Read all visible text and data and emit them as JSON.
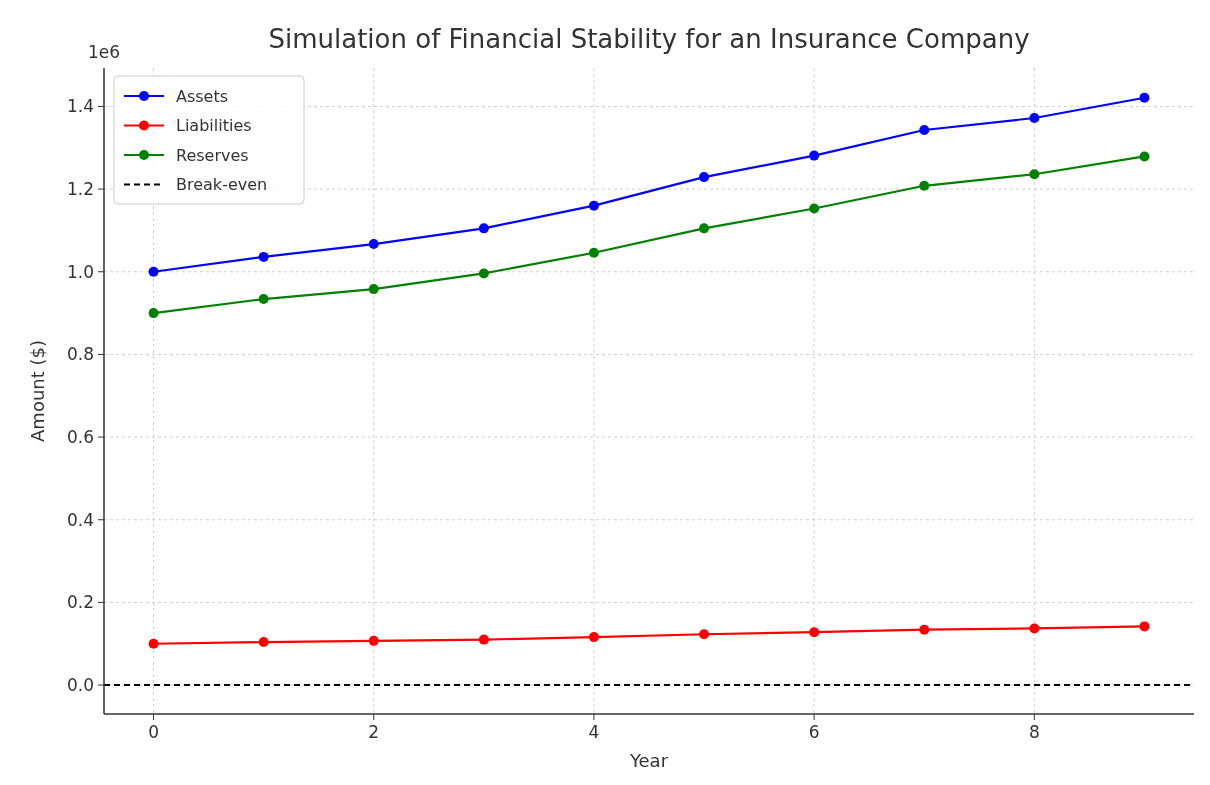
{
  "chart_data": {
    "type": "line",
    "title": "Simulation of Financial Stability for an Insurance Company",
    "xlabel": "Year",
    "ylabel": "Amount ($)",
    "annotations": [
      "1e6"
    ],
    "x": [
      0,
      1,
      2,
      3,
      4,
      5,
      6,
      7,
      8,
      9
    ],
    "series": [
      {
        "name": "Assets",
        "color": "#0000ff",
        "values": [
          1.0,
          1.036,
          1.067,
          1.105,
          1.16,
          1.229,
          1.281,
          1.343,
          1.372,
          1.421
        ]
      },
      {
        "name": "Liabilities",
        "color": "#ff0000",
        "values": [
          0.1,
          0.104,
          0.107,
          0.11,
          0.116,
          0.123,
          0.128,
          0.134,
          0.137,
          0.142
        ]
      },
      {
        "name": "Reserves",
        "color": "#008000",
        "values": [
          0.9,
          0.934,
          0.958,
          0.996,
          1.046,
          1.105,
          1.153,
          1.208,
          1.236,
          1.279
        ]
      }
    ],
    "ref_lines": [
      {
        "axis": "y",
        "value": 0,
        "label": "Break-even",
        "color": "#000000",
        "line_style": "dashed"
      }
    ],
    "xlim": [
      -0.45,
      9.45
    ],
    "xticks": [
      0,
      2,
      4,
      6,
      8
    ],
    "ylim": [
      -0.07,
      1.493
    ],
    "yticks": [
      {
        "value": 0,
        "label": "0.0"
      },
      0.2,
      0.4,
      0.6,
      0.8,
      {
        "value": 1,
        "label": "1.0"
      },
      1.2,
      1.4
    ],
    "grid": true,
    "legend": "top left",
    "marker": "circle",
    "line_style": "solid"
  }
}
